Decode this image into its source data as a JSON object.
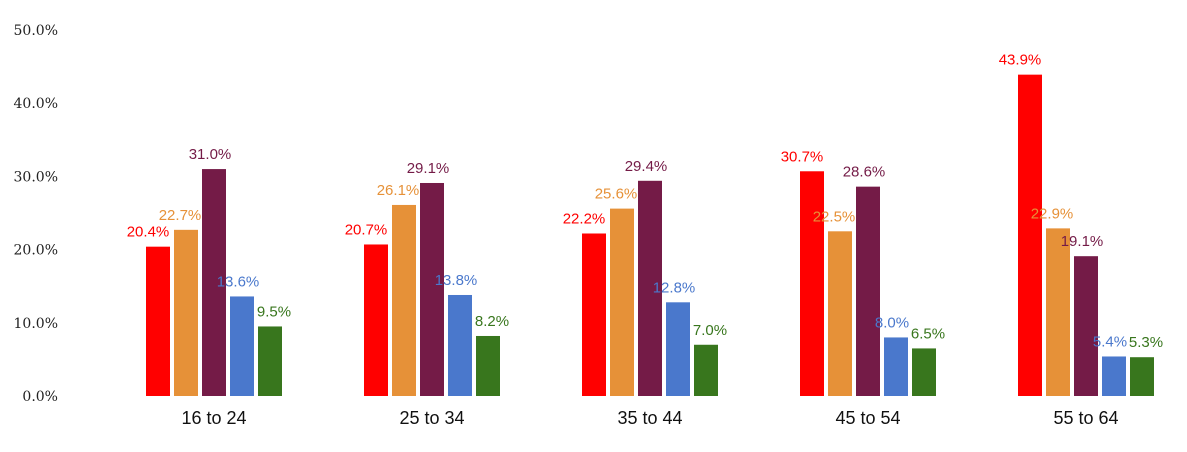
{
  "chart_data": {
    "type": "bar",
    "categories": [
      "16 to 24",
      "25 to 34",
      "35 to 44",
      "45 to 54",
      "55 to 64"
    ],
    "series": [
      {
        "color": "#ff0000",
        "values": [
          20.4,
          20.7,
          22.2,
          30.7,
          43.9
        ],
        "labels": [
          "20.4%",
          "20.7%",
          "22.2%",
          "30.7%",
          "43.9%"
        ]
      },
      {
        "color": "#e69138",
        "values": [
          22.7,
          26.1,
          25.6,
          22.5,
          22.9
        ],
        "labels": [
          "22.7%",
          "26.1%",
          "25.6%",
          "22.5%",
          "22.9%"
        ]
      },
      {
        "color": "#741b47",
        "values": [
          31.0,
          29.1,
          29.4,
          28.6,
          19.1
        ],
        "labels": [
          "31.0%",
          "29.1%",
          "29.4%",
          "28.6%",
          "19.1%"
        ]
      },
      {
        "color": "#4a78cc",
        "values": [
          13.6,
          13.8,
          12.8,
          8.0,
          5.4
        ],
        "labels": [
          "13.6%",
          "13.8%",
          "12.8%",
          "8.0%",
          "5.4%"
        ]
      },
      {
        "color": "#38761d",
        "values": [
          9.5,
          8.2,
          7.0,
          6.5,
          5.3
        ],
        "labels": [
          "9.5%",
          "8.2%",
          "7.0%",
          "6.5%",
          "5.3%"
        ]
      }
    ],
    "yticks": [
      "0.0%",
      "10.0%",
      "20.0%",
      "30.0%",
      "40.0%",
      "50.0%"
    ],
    "ylim": [
      0,
      50
    ],
    "grid": false
  }
}
